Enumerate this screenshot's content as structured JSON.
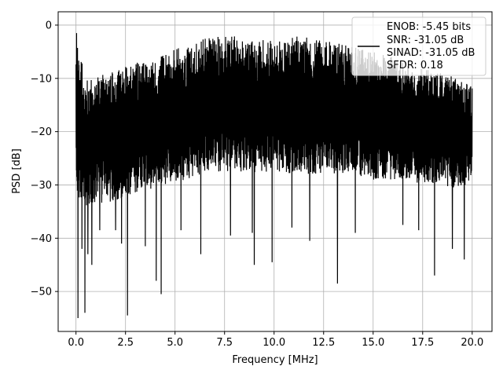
{
  "chart_data": {
    "type": "line",
    "xlabel": "Frequency [MHz]",
    "ylabel": "PSD [dB]",
    "xlim": [
      -0.9,
      21.0
    ],
    "ylim": [
      -57.5,
      2.5
    ],
    "xticks": [
      0.0,
      2.5,
      5.0,
      7.5,
      10.0,
      12.5,
      15.0,
      17.5,
      20.0
    ],
    "xtick_labels": [
      "0.0",
      "2.5",
      "5.0",
      "7.5",
      "10.0",
      "12.5",
      "15.0",
      "17.5",
      "20.0"
    ],
    "yticks": [
      0,
      -10,
      -20,
      -30,
      -40,
      -50
    ],
    "ytick_labels": [
      "0",
      "−10",
      "−20",
      "−30",
      "−40",
      "−50"
    ],
    "grid": true,
    "legend": {
      "placement": "top-right",
      "entries": [
        "ENOB: -5.45 bits",
        "SNR: -31.05 dB",
        "SINAD: -31.05 dB",
        "SFDR: 0.18"
      ]
    },
    "series": [
      {
        "color": "#000000",
        "envelope": {
          "x": [
            0.0,
            0.5,
            1.0,
            2.0,
            3.0,
            4.0,
            5.0,
            6.0,
            7.0,
            8.0,
            9.0,
            10.0,
            11.0,
            12.0,
            13.0,
            14.0,
            15.0,
            16.0,
            17.0,
            18.0,
            19.0,
            20.0
          ],
          "upper": [
            -1.5,
            -9.5,
            -9.5,
            -8.5,
            -7.0,
            -6.5,
            -4.5,
            -3.0,
            -2.0,
            -2.0,
            -3.0,
            -2.5,
            -2.0,
            -2.5,
            -3.0,
            -4.0,
            -5.0,
            -6.0,
            -8.0,
            -8.5,
            -9.5,
            -11.5
          ],
          "lower": [
            -33.0,
            -34.0,
            -33.5,
            -33.0,
            -31.5,
            -30.5,
            -29.5,
            -28.5,
            -27.5,
            -27.5,
            -28.0,
            -27.5,
            -28.0,
            -28.0,
            -28.0,
            -28.5,
            -29.0,
            -29.0,
            -29.5,
            -30.0,
            -30.5,
            -30.0
          ]
        },
        "spikes": [
          {
            "x": 0.03,
            "y": -1.5
          },
          {
            "x": 0.1,
            "y": -55.0
          },
          {
            "x": 0.3,
            "y": -42.0
          },
          {
            "x": 0.45,
            "y": -54.0
          },
          {
            "x": 0.6,
            "y": -43.0
          },
          {
            "x": 0.8,
            "y": -45.0
          },
          {
            "x": 1.2,
            "y": -38.5
          },
          {
            "x": 2.0,
            "y": -38.5
          },
          {
            "x": 2.3,
            "y": -41.0
          },
          {
            "x": 2.6,
            "y": -54.5
          },
          {
            "x": 3.5,
            "y": -41.5
          },
          {
            "x": 4.05,
            "y": -48.0
          },
          {
            "x": 4.3,
            "y": -50.5
          },
          {
            "x": 5.3,
            "y": -38.5
          },
          {
            "x": 6.3,
            "y": -43.0
          },
          {
            "x": 7.8,
            "y": -39.5
          },
          {
            "x": 8.9,
            "y": -39.0
          },
          {
            "x": 9.0,
            "y": -45.0
          },
          {
            "x": 9.9,
            "y": -44.5
          },
          {
            "x": 10.9,
            "y": -38.0
          },
          {
            "x": 11.8,
            "y": -40.5
          },
          {
            "x": 13.2,
            "y": -48.5
          },
          {
            "x": 14.1,
            "y": -39.0
          },
          {
            "x": 16.5,
            "y": -37.5
          },
          {
            "x": 17.3,
            "y": -38.5
          },
          {
            "x": 18.1,
            "y": -47.0
          },
          {
            "x": 19.0,
            "y": -42.0
          },
          {
            "x": 19.6,
            "y": -44.0
          }
        ]
      }
    ]
  }
}
